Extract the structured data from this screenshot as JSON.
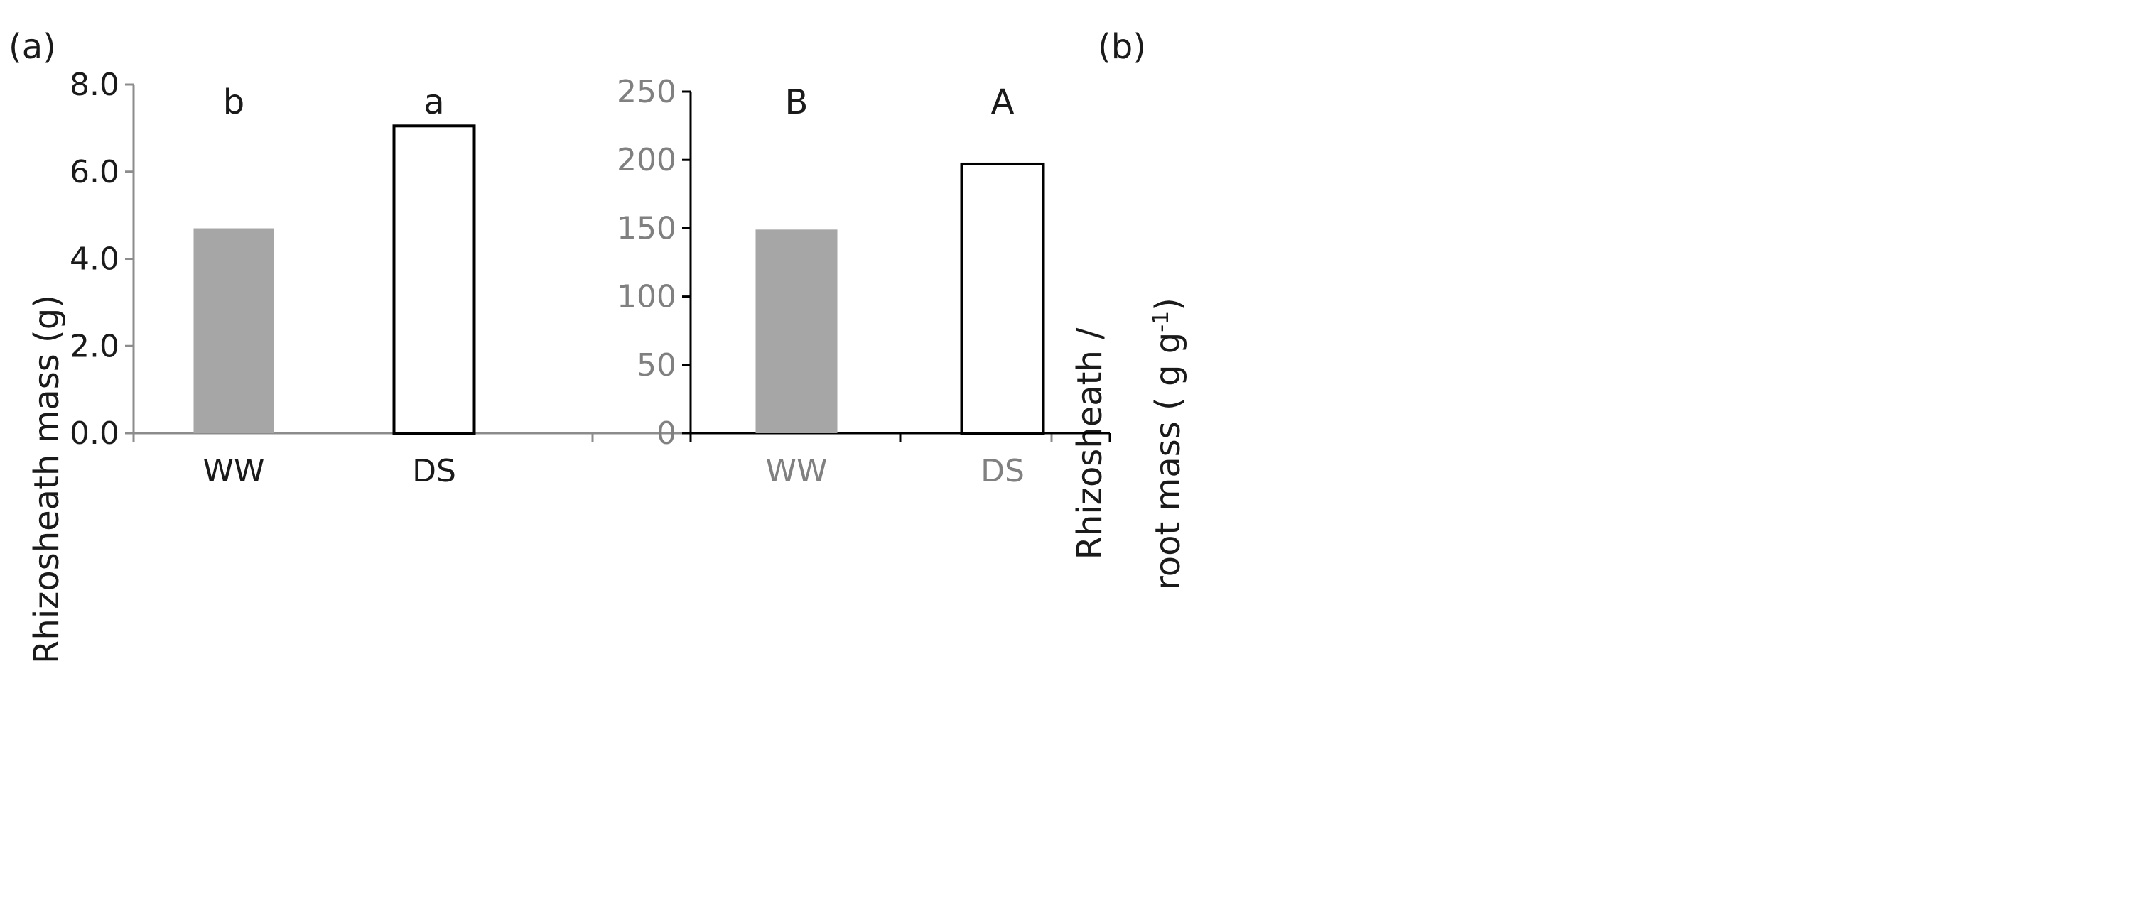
{
  "colors": {
    "bar_ww": "#a6a6a6",
    "bar_ds": "#ffffff",
    "axis_a": "#8c8c8c",
    "axis_b": "#000000",
    "text_dark": "#1a1a1a",
    "text_grey": "#808080"
  },
  "chart_data": [
    {
      "panel": "(a)",
      "type": "bar",
      "categories": [
        "WW",
        "DS"
      ],
      "values": [
        4.7,
        7.05
      ],
      "sig_letters": [
        "b",
        "a"
      ],
      "ylabel": "Rhizosheath mass (g)",
      "ylim": [
        0,
        8
      ],
      "yticks": [
        "0.0",
        "2.0",
        "4.0",
        "6.0",
        "8.0"
      ],
      "grid": false,
      "legend": "none"
    },
    {
      "panel": "(b)",
      "type": "bar",
      "categories": [
        "WW",
        "DS"
      ],
      "values": [
        149,
        197
      ],
      "sig_letters": [
        "B",
        "A"
      ],
      "ylabel_line1": "Rhizosheath /",
      "ylabel_line2_main": "root mass ( g g",
      "ylabel_line2_sup": "-1",
      "ylabel_line2_end": ")",
      "ylim": [
        0,
        250
      ],
      "yticks": [
        "0",
        "50",
        "100",
        "150",
        "200",
        "250"
      ],
      "grid": false,
      "legend": "none"
    }
  ]
}
